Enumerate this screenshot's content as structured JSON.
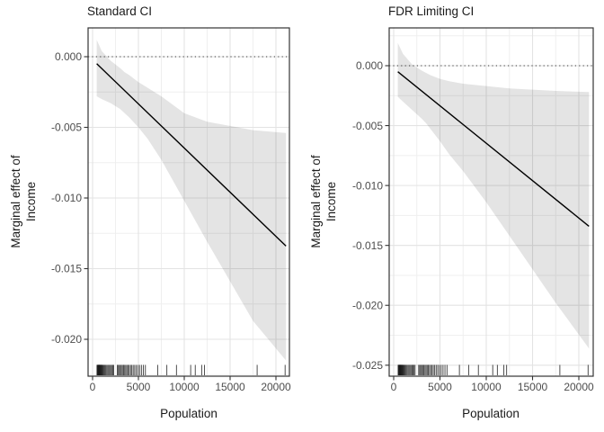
{
  "figure": {
    "background": "#ffffff"
  },
  "colors": {
    "line": "#000000",
    "zero_line": "#333333",
    "ribbon_fill": "#000000",
    "ribbon_opacity": 0.105,
    "grid_major": "#e3e3e3",
    "grid_minor": "#efefef",
    "panel_border": "#343434",
    "tick_mark": "#333333",
    "tick_label": "#4d4d4d",
    "text": "#1a1a1a",
    "rug": "#1a1a1a"
  },
  "chart_data": [
    {
      "type": "line",
      "panel": "left",
      "title": "Standard CI",
      "xlabel": "Population",
      "ylabel_lines": [
        "Marginal effect of",
        "Income"
      ],
      "legend": "none",
      "grid": true,
      "xlim": [
        -490,
        21470
      ],
      "ylim": [
        -0.022611,
        0.002038
      ],
      "x_ticks": [
        {
          "value": 0,
          "label": "0"
        },
        {
          "value": 5000,
          "label": "5000"
        },
        {
          "value": 10000,
          "label": "10000"
        },
        {
          "value": 15000,
          "label": "15000"
        },
        {
          "value": 20000,
          "label": "20000"
        }
      ],
      "y_ticks": [
        {
          "value": 0.0,
          "label": "0.000"
        },
        {
          "value": -0.005,
          "label": "-0.005"
        },
        {
          "value": -0.01,
          "label": "-0.010"
        },
        {
          "value": -0.015,
          "label": "-0.015"
        },
        {
          "value": -0.02,
          "label": "-0.020"
        }
      ],
      "zero_reference_line": 0.0,
      "line": {
        "x": [
          450,
          21100
        ],
        "y": [
          -0.0005,
          -0.0134
        ]
      },
      "ribbon": {
        "x": [
          450,
          1000,
          2000,
          3000,
          3500,
          4000,
          5000,
          6000,
          7500,
          10000,
          12500,
          15000,
          17500,
          21100
        ],
        "upper": [
          0.0012,
          0.0004,
          -0.0003,
          -0.0008,
          -0.0011,
          -0.0013,
          -0.0018,
          -0.0022,
          -0.0028,
          -0.004,
          -0.0046,
          -0.0049,
          -0.0052,
          -0.0054
        ],
        "lower": [
          -0.0028,
          -0.003,
          -0.0033,
          -0.0037,
          -0.004,
          -0.0043,
          -0.005,
          -0.0058,
          -0.0073,
          -0.0102,
          -0.0131,
          -0.0159,
          -0.0187,
          -0.0215
        ]
      },
      "rug_x": [
        480,
        520,
        560,
        600,
        630,
        660,
        690,
        720,
        750,
        780,
        810,
        850,
        890,
        930,
        980,
        1030,
        1090,
        1160,
        1240,
        1330,
        1430,
        1540,
        1650,
        1760,
        1870,
        1980,
        2090,
        2200,
        2310,
        2700,
        2810,
        2920,
        3030,
        3140,
        3260,
        3380,
        3500,
        3620,
        3740,
        3870,
        4000,
        4140,
        4280,
        4430,
        4590,
        4760,
        4940,
        5130,
        5330,
        5540,
        5760,
        7100,
        8100,
        9150,
        10700,
        11200,
        11900,
        12200,
        17950,
        21000
      ]
    },
    {
      "type": "line",
      "panel": "right",
      "title": "FDR Limiting CI",
      "xlabel": "Population",
      "ylabel_lines": [
        "Marginal effect of",
        "Income"
      ],
      "legend": "none",
      "grid": true,
      "xlim": [
        -485,
        21553
      ],
      "ylim": [
        -0.025917,
        0.003155
      ],
      "x_ticks": [
        {
          "value": 0,
          "label": "0"
        },
        {
          "value": 5000,
          "label": "5000"
        },
        {
          "value": 10000,
          "label": "10000"
        },
        {
          "value": 15000,
          "label": "15000"
        },
        {
          "value": 20000,
          "label": "20000"
        }
      ],
      "y_ticks": [
        {
          "value": 0.0,
          "label": "0.000"
        },
        {
          "value": -0.005,
          "label": "-0.005"
        },
        {
          "value": -0.01,
          "label": "-0.010"
        },
        {
          "value": -0.015,
          "label": "-0.015"
        },
        {
          "value": -0.02,
          "label": "-0.020"
        },
        {
          "value": -0.025,
          "label": "-0.025"
        }
      ],
      "zero_reference_line": 0.0,
      "line": {
        "x": [
          450,
          21100
        ],
        "y": [
          -0.0005,
          -0.0134
        ]
      },
      "ribbon": {
        "x": [
          450,
          1000,
          2000,
          3000,
          3500,
          4000,
          5000,
          6000,
          7500,
          10000,
          12500,
          15000,
          17500,
          21100
        ],
        "upper": [
          0.0019,
          0.001,
          0.0001,
          -0.0004,
          -0.0006,
          -0.0008,
          -0.0011,
          -0.0013,
          -0.0015,
          -0.0017,
          -0.0019,
          -0.002,
          -0.0021,
          -0.0022
        ],
        "lower": [
          -0.0026,
          -0.003,
          -0.0037,
          -0.0044,
          -0.0048,
          -0.0053,
          -0.0063,
          -0.0074,
          -0.0088,
          -0.0114,
          -0.0142,
          -0.017,
          -0.0198,
          -0.0236
        ]
      },
      "rug_x": [
        480,
        520,
        560,
        600,
        630,
        660,
        690,
        720,
        750,
        780,
        810,
        850,
        890,
        930,
        980,
        1030,
        1090,
        1160,
        1240,
        1330,
        1430,
        1540,
        1650,
        1760,
        1870,
        1980,
        2090,
        2200,
        2310,
        2700,
        2810,
        2920,
        3030,
        3140,
        3260,
        3380,
        3500,
        3620,
        3740,
        3870,
        4000,
        4140,
        4280,
        4430,
        4590,
        4760,
        4940,
        5130,
        5330,
        5540,
        5760,
        7100,
        8100,
        9150,
        10700,
        11200,
        11900,
        12200,
        17950,
        21000
      ]
    }
  ]
}
